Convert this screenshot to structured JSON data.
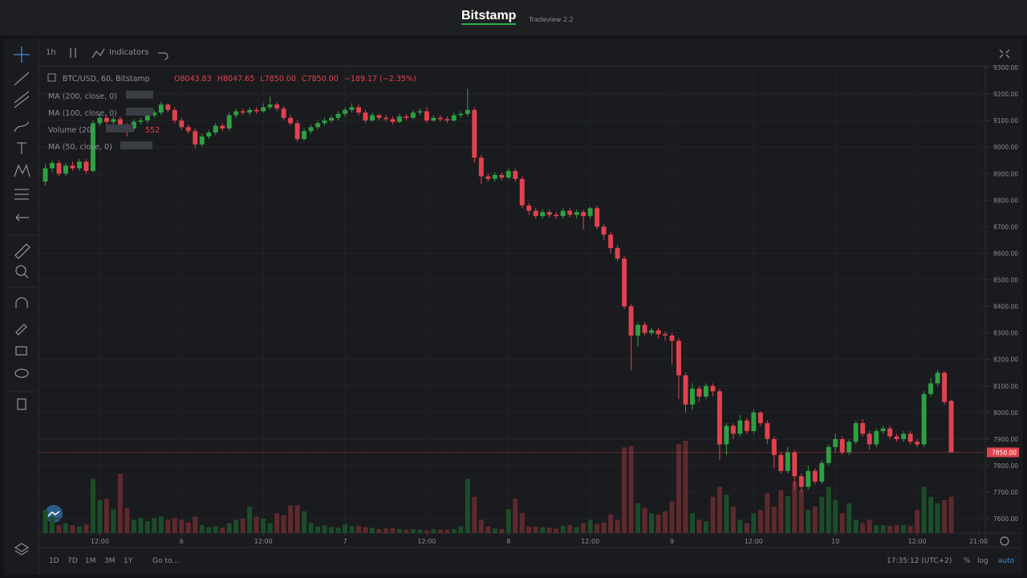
{
  "header": {
    "brand": "Bitstamp",
    "version": "Tradeview 2.2"
  },
  "toolbar": {
    "interval": "1h",
    "indicators": "Indicators"
  },
  "legend": {
    "symbol": "BTC/USD, 60, Bitstamp",
    "open_prefix": "O",
    "open": 8043.83,
    "high_prefix": "H",
    "high": 8047.65,
    "low_prefix": "L",
    "low": {
      "value": 7850,
      "label": "7850.00"
    },
    "close_prefix": "C",
    "close": {
      "value": 7850,
      "label": "7850.00"
    },
    "change": "−189.17 (−2.35%)"
  },
  "indicators": [
    "MA (200, close, 0)",
    "MA (100, close, 0)",
    "Volume (20)",
    "MA (50, close, 0)"
  ],
  "volume_reading": 552,
  "bottom": {
    "ranges": [
      "1D",
      "7D",
      "1M",
      "3M",
      "1Y"
    ],
    "goto": "Go to...",
    "clock": "17:35:12 (UTC+2)",
    "percent": "%",
    "log": "log",
    "auto": "auto"
  },
  "chart_data": {
    "type": "candlestick",
    "up_color": "#2ea043",
    "down_color": "#e0424e",
    "up_volume_color": "#1b4d2a",
    "down_volume_color": "#5e2a2e",
    "grid": true,
    "last_price": {
      "value": 7850,
      "label": "7850.00"
    },
    "xlim": [
      -1,
      138
    ],
    "xticks": [
      {
        "value": 8,
        "label": "12:00"
      },
      {
        "value": 20,
        "label": "6"
      },
      {
        "value": 32,
        "label": "12:00"
      },
      {
        "value": 44,
        "label": "7"
      },
      {
        "value": 56,
        "label": "12:00"
      },
      {
        "value": 68,
        "label": "8"
      },
      {
        "value": 80,
        "label": "12:00"
      },
      {
        "value": 92,
        "label": "9"
      },
      {
        "value": 104,
        "label": "12:00"
      },
      {
        "value": 116,
        "label": "10"
      },
      {
        "value": 128,
        "label": "12:00"
      },
      {
        "value": 137,
        "label": "21:00"
      }
    ],
    "ylim": [
      7546,
      9306
    ],
    "yticks": [
      {
        "value": 7600,
        "label": "7600.00"
      },
      {
        "value": 7700,
        "label": "7700.00"
      },
      {
        "value": 7800,
        "label": "7800.00"
      },
      {
        "value": 7900,
        "label": "7900.00"
      },
      {
        "value": 8000,
        "label": "8000.00"
      },
      {
        "value": 8100,
        "label": "8100.00"
      },
      {
        "value": 8200,
        "label": "8200.00"
      },
      {
        "value": 8300,
        "label": "8300.00"
      },
      {
        "value": 8400,
        "label": "8400.00"
      },
      {
        "value": 8500,
        "label": "8500.00"
      },
      {
        "value": 8600,
        "label": "8600.00"
      },
      {
        "value": 8700,
        "label": "8700.00"
      },
      {
        "value": 8800,
        "label": "8800.00"
      },
      {
        "value": 8900,
        "label": "8900.00"
      },
      {
        "value": 9000,
        "label": "9000.00"
      },
      {
        "value": 9100,
        "label": "9100.00"
      },
      {
        "value": 9200,
        "label": "9200.00"
      },
      {
        "value": 9300,
        "label": "9300.00"
      }
    ],
    "open": [
      8870,
      8920,
      8940,
      8900,
      8930,
      8920,
      8945,
      8910,
      9090,
      9110,
      9095,
      9105,
      9080,
      9070,
      9095,
      9100,
      9120,
      9130,
      9160,
      9140,
      9100,
      9075,
      9060,
      9010,
      9040,
      9055,
      9080,
      9070,
      9120,
      9135,
      9130,
      9140,
      9135,
      9150,
      9160,
      9145,
      9110,
      9090,
      9030,
      9060,
      9075,
      9090,
      9100,
      9110,
      9125,
      9140,
      9150,
      9130,
      9100,
      9120,
      9110,
      9105,
      9095,
      9115,
      9110,
      9130,
      9135,
      9100,
      9110,
      9105,
      9100,
      9120,
      9125,
      9140,
      8960,
      8890,
      8880,
      8895,
      8885,
      8910,
      8880,
      8780,
      8760,
      8740,
      8755,
      8745,
      8740,
      8760,
      8745,
      8755,
      8740,
      8770,
      8700,
      8670,
      8620,
      8580,
      8400,
      8290,
      8330,
      8300,
      8310,
      8295,
      8290,
      8270,
      8140,
      8030,
      8090,
      8060,
      8100,
      8080,
      7880,
      7950,
      7920,
      7970,
      7930,
      8000,
      7960,
      7900,
      7840,
      7780,
      7850,
      7760,
      7720,
      7780,
      7740,
      7810,
      7870,
      7900,
      7850,
      7890,
      7960,
      7920,
      7880,
      7930,
      7940,
      7910,
      7900,
      7920,
      7890,
      7880,
      8070,
      8110,
      8150,
      8043.83
    ],
    "high": [
      8935,
      8950,
      8950,
      8940,
      8945,
      8955,
      8955,
      9100,
      9125,
      9120,
      9115,
      9115,
      9090,
      9105,
      9110,
      9130,
      9140,
      9170,
      9165,
      9150,
      9110,
      9085,
      9070,
      9050,
      9065,
      9090,
      9090,
      9130,
      9145,
      9145,
      9150,
      9150,
      9165,
      9190,
      9170,
      9155,
      9120,
      9100,
      9070,
      9085,
      9100,
      9110,
      9120,
      9135,
      9150,
      9165,
      9160,
      9140,
      9130,
      9125,
      9120,
      9115,
      9125,
      9125,
      9140,
      9145,
      9150,
      9120,
      9120,
      9115,
      9130,
      9135,
      9220,
      9150,
      8970,
      8900,
      8905,
      8905,
      8920,
      8920,
      8890,
      8790,
      8770,
      8765,
      8765,
      8755,
      8770,
      8770,
      8765,
      8765,
      8775,
      8780,
      8710,
      8680,
      8630,
      8590,
      8410,
      8340,
      8340,
      8320,
      8320,
      8305,
      8300,
      8280,
      8150,
      8110,
      8100,
      8110,
      8110,
      8090,
      7960,
      7960,
      7990,
      7980,
      8010,
      8005,
      7970,
      7910,
      7850,
      7870,
      7860,
      7770,
      7800,
      7790,
      7820,
      7880,
      7920,
      7910,
      7900,
      7970,
      7975,
      7930,
      7940,
      7950,
      7950,
      7920,
      7930,
      7930,
      7900,
      8080,
      8130,
      8160,
      8155,
      8047.65
    ],
    "low": [
      8855,
      8905,
      8890,
      8890,
      8910,
      8910,
      8900,
      8905,
      9080,
      9085,
      9085,
      9060,
      9040,
      9060,
      9085,
      9090,
      9110,
      9120,
      9130,
      9090,
      9065,
      9050,
      8995,
      9000,
      9030,
      9045,
      9060,
      9060,
      9110,
      9120,
      9120,
      9125,
      9130,
      9140,
      9135,
      9100,
      9080,
      9020,
      9025,
      9050,
      9065,
      9080,
      9090,
      9100,
      9115,
      9130,
      9120,
      9090,
      9095,
      9100,
      9095,
      9085,
      9090,
      9100,
      9105,
      9120,
      9090,
      9095,
      9095,
      9090,
      9095,
      9110,
      9115,
      8940,
      8860,
      8870,
      8870,
      8875,
      8880,
      8870,
      8770,
      8745,
      8730,
      8730,
      8735,
      8730,
      8730,
      8735,
      8730,
      8690,
      8730,
      8690,
      8650,
      8600,
      8570,
      8390,
      8160,
      8250,
      8290,
      8290,
      8280,
      8270,
      8180,
      8050,
      8000,
      8010,
      8040,
      8050,
      8060,
      7820,
      7840,
      7900,
      7910,
      7920,
      7920,
      7950,
      7880,
      7790,
      7770,
      7770,
      7710,
      7700,
      7710,
      7730,
      7730,
      7800,
      7850,
      7840,
      7840,
      7880,
      7910,
      7860,
      7870,
      7920,
      7900,
      7890,
      7890,
      7880,
      7870,
      7870,
      8060,
      8100,
      8030,
      7850
    ],
    "close": [
      8920,
      8940,
      8900,
      8930,
      8920,
      8945,
      8910,
      9090,
      9110,
      9095,
      9105,
      9080,
      9070,
      9095,
      9100,
      9120,
      9130,
      9160,
      9140,
      9100,
      9075,
      9060,
      9010,
      9040,
      9055,
      9080,
      9070,
      9120,
      9135,
      9130,
      9140,
      9135,
      9150,
      9160,
      9145,
      9110,
      9090,
      9030,
      9060,
      9075,
      9090,
      9100,
      9110,
      9125,
      9140,
      9150,
      9130,
      9100,
      9120,
      9110,
      9105,
      9095,
      9115,
      9110,
      9130,
      9135,
      9100,
      9110,
      9105,
      9100,
      9120,
      9125,
      9140,
      8960,
      8890,
      8880,
      8895,
      8885,
      8910,
      8880,
      8780,
      8760,
      8740,
      8755,
      8745,
      8740,
      8760,
      8745,
      8755,
      8740,
      8770,
      8700,
      8670,
      8620,
      8580,
      8400,
      8290,
      8330,
      8300,
      8310,
      8295,
      8290,
      8270,
      8140,
      8030,
      8090,
      8060,
      8100,
      8080,
      7880,
      7950,
      7920,
      7970,
      7930,
      8000,
      7960,
      7900,
      7840,
      7780,
      7850,
      7760,
      7720,
      7780,
      7740,
      7810,
      7870,
      7900,
      7850,
      7890,
      7960,
      7920,
      7880,
      7930,
      7940,
      7910,
      7900,
      7920,
      7890,
      7880,
      8070,
      8110,
      8150,
      8040,
      7850
    ],
    "volume": [
      350,
      250,
      120,
      150,
      120,
      100,
      130,
      820,
      500,
      520,
      360,
      900,
      380,
      200,
      230,
      180,
      230,
      250,
      200,
      230,
      200,
      160,
      250,
      120,
      90,
      100,
      80,
      150,
      200,
      220,
      400,
      250,
      220,
      150,
      300,
      270,
      420,
      420,
      330,
      150,
      100,
      120,
      90,
      80,
      130,
      100,
      110,
      90,
      80,
      60,
      70,
      80,
      60,
      50,
      60,
      50,
      40,
      60,
      50,
      50,
      60,
      100,
      820,
      550,
      200,
      100,
      70,
      60,
      360,
      520,
      300,
      100,
      100,
      90,
      80,
      70,
      110,
      120,
      90,
      150,
      200,
      140,
      160,
      280,
      200,
      1300,
      1320,
      450,
      380,
      300,
      280,
      330,
      480,
      1350,
      1400,
      300,
      200,
      180,
      550,
      700,
      580,
      400,
      200,
      150,
      300,
      350,
      600,
      400,
      650,
      560,
      780,
      650,
      350,
      400,
      550,
      700,
      500,
      300,
      450,
      200,
      150,
      200,
      120,
      120,
      110,
      120,
      120,
      110,
      350,
      700,
      550,
      450,
      500,
      552
    ]
  }
}
